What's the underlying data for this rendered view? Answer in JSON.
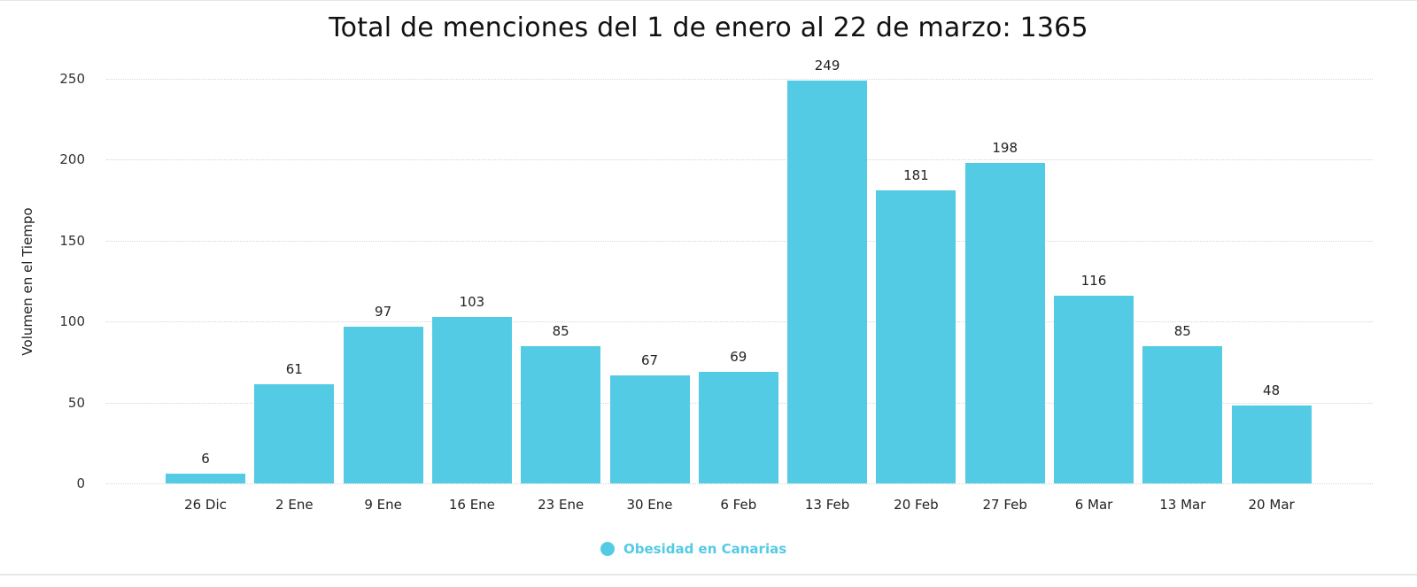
{
  "chart_data": {
    "type": "bar",
    "title": "Total de menciones del 1 de enero al 22 de marzo: 1365",
    "xlabel": "",
    "ylabel": "Volumen en el Tiempo",
    "categories": [
      "26 Dic",
      "2 Ene",
      "9 Ene",
      "16 Ene",
      "23 Ene",
      "30  Ene",
      "6 Feb",
      "13 Feb",
      "20 Feb",
      "27 Feb",
      "6 Mar",
      "13 Mar",
      "20 Mar"
    ],
    "series": [
      {
        "name": "Obesidad en Canarias",
        "color": "#53cbe4",
        "values": [
          6,
          61,
          97,
          103,
          85,
          67,
          69,
          249,
          181,
          198,
          116,
          85,
          48
        ]
      }
    ],
    "yticks": [
      0,
      50,
      100,
      150,
      200,
      250
    ],
    "ylim": [
      0,
      250
    ],
    "grid": true,
    "data_labels": true,
    "legend_position": "bottom-center"
  }
}
